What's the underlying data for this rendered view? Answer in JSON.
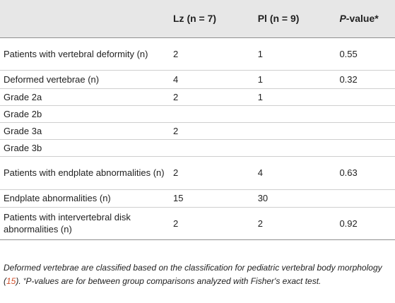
{
  "table": {
    "headers": {
      "col1": "",
      "lz_label": "Lz",
      "lz_n": "(n = 7)",
      "pl_label": "Pl",
      "pl_n": "(n = 9)",
      "p_label": "P",
      "p_rest": "-value*"
    },
    "rows": [
      {
        "label": "Patients with vertebral deformity (n)",
        "lz": "2",
        "pl": "1",
        "p": "0.55"
      },
      {
        "label": "Deformed vertebrae (n)",
        "lz": "4",
        "pl": "1",
        "p": "0.32"
      },
      {
        "label": "Grade 2a",
        "lz": "2",
        "pl": "1",
        "p": ""
      },
      {
        "label": "Grade 2b",
        "lz": "",
        "pl": "",
        "p": ""
      },
      {
        "label": "Grade 3a",
        "lz": "2",
        "pl": "",
        "p": ""
      },
      {
        "label": "Grade 3b",
        "lz": "",
        "pl": "",
        "p": ""
      },
      {
        "label": "Patients with endplate abnormalities (n)",
        "lz": "2",
        "pl": "4",
        "p": "0.63"
      },
      {
        "label": "Endplate abnormalities (n)",
        "lz": "15",
        "pl": "30",
        "p": ""
      },
      {
        "label": "Patients with intervertebral disk abnormalities (n)",
        "lz": "2",
        "pl": "2",
        "p": "0.92"
      }
    ]
  },
  "footnote": {
    "part1": "Deformed vertebrae are classified based on the classification for pediatric vertebral body morphology (",
    "ref": "15",
    "part2": "). ",
    "star": "*",
    "part3": "P-values are for between group comparisons analyzed with Fisher's exact test."
  }
}
